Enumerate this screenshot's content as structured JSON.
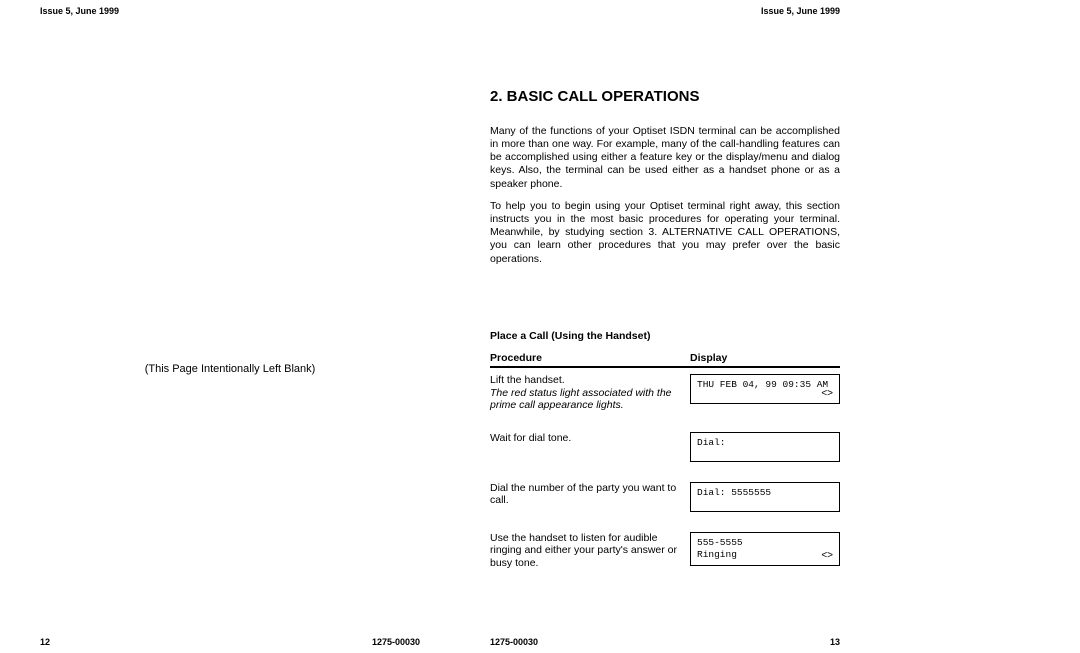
{
  "left_page": {
    "header": "Issue 5, June 1999",
    "blank_text": "(This Page Intentionally Left Blank)",
    "footer_num": "12",
    "footer_code": "1275-00030"
  },
  "right_page": {
    "header": "Issue 5, June 1999",
    "section_title": "2. BASIC CALL OPERATIONS",
    "para1": "Many of the functions of your Optiset ISDN terminal can be accomplished in more than one way. For example, many of the call-handling features can be accomplished using either a feature key or the display/menu and dialog keys. Also, the terminal can be used either as a handset phone or as a speaker phone.",
    "para2": "To help you to begin using your Optiset terminal right away, this section instructs you in the most basic procedures for operating your terminal. Meanwhile, by studying section 3. ALTERNATIVE CALL OPERATIONS, you can learn other procedures that you may prefer over the basic operations.",
    "sub_title": "Place a Call (Using the Handset)",
    "col_proc": "Procedure",
    "col_disp": "Display",
    "steps": [
      {
        "text": "Lift the handset.",
        "note": "The red status light associated with the prime call appearance lights.",
        "display_line1": "THU FEB 04, 99 09:35 AM",
        "display_line2": "",
        "diamond": "<>"
      },
      {
        "text": "Wait for dial tone.",
        "note": "",
        "display_line1": "Dial:",
        "display_line2": "",
        "diamond": ""
      },
      {
        "text": "Dial the number of the party you want to call.",
        "note": "",
        "display_line1": "Dial: 5555555",
        "display_line2": "",
        "diamond": ""
      },
      {
        "text": "Use the handset to listen for audible ringing and either your party's answer or busy tone.",
        "note": "",
        "display_line1": "555-5555",
        "display_line2": "Ringing",
        "diamond": "<>"
      }
    ],
    "footer_num": "13",
    "footer_code": "1275-00030"
  }
}
